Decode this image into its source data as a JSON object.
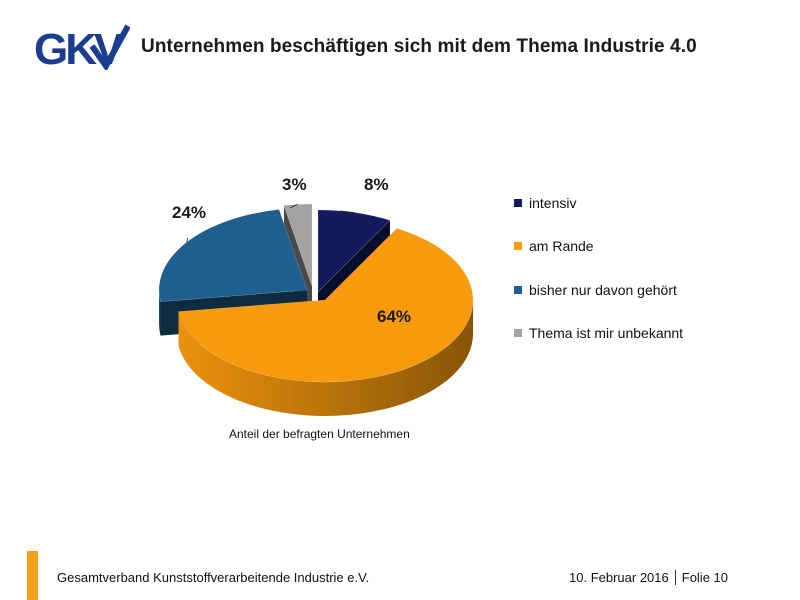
{
  "header": {
    "logo_text": "GKV",
    "title": "Unternehmen beschäftigen sich mit dem Thema Industrie 4.0"
  },
  "chart_data": {
    "type": "pie",
    "title": "",
    "caption": "Anteil der befragten Unternehmen",
    "legend_position": "right",
    "slices": [
      {
        "name": "intensiv",
        "value": 8,
        "label": "8%",
        "color": "#141a5e"
      },
      {
        "name": "am Rande",
        "value": 64,
        "label": "64%",
        "color": "#f79a0e"
      },
      {
        "name": "bisher nur davon gehört",
        "value": 24,
        "label": "24%",
        "color": "#1f5f8f"
      },
      {
        "name": "Thema ist mir unbekannt",
        "value": 3,
        "label": "3%",
        "color": "#a3a3a3"
      }
    ]
  },
  "footer": {
    "accent_color": "#f4a21a",
    "organization": "Gesamtverband Kunststoffverarbeitende Industrie e.V.",
    "date": "10. Februar 2016",
    "slide": "Folie 10"
  }
}
